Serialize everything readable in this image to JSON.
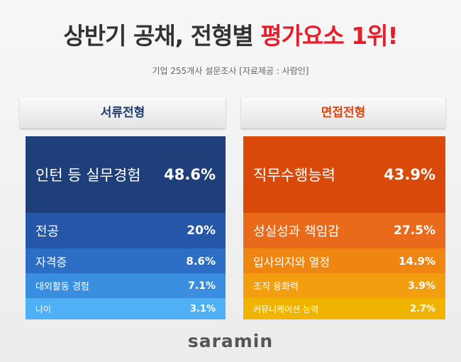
{
  "header": {
    "title": "상반기 공채, 전형별",
    "title_highlight": "평가요소 1위!",
    "subtitle": "기업 255개사 설문조사 [자료제공 : 사람인]"
  },
  "panels": [
    {
      "tab": "서류전형",
      "rows": [
        {
          "label": "인턴 등 실무경험",
          "value": "48.6%"
        },
        {
          "label": "전공",
          "value": "20%"
        },
        {
          "label": "자격증",
          "value": "8.6%"
        },
        {
          "label": "대외활동 경험",
          "value": "7.1%"
        },
        {
          "label": "나이",
          "value": "3.1%"
        }
      ]
    },
    {
      "tab": "면접전형",
      "rows": [
        {
          "label": "직무수행능력",
          "value": "43.9%"
        },
        {
          "label": "성실성과 책임감",
          "value": "27.5%"
        },
        {
          "label": "입사의지와 열정",
          "value": "14.9%"
        },
        {
          "label": "조직 융화력",
          "value": "3.9%"
        },
        {
          "label": "커뮤니케이션 능력",
          "value": "2.7%"
        }
      ]
    }
  ],
  "logo": "saramin"
}
